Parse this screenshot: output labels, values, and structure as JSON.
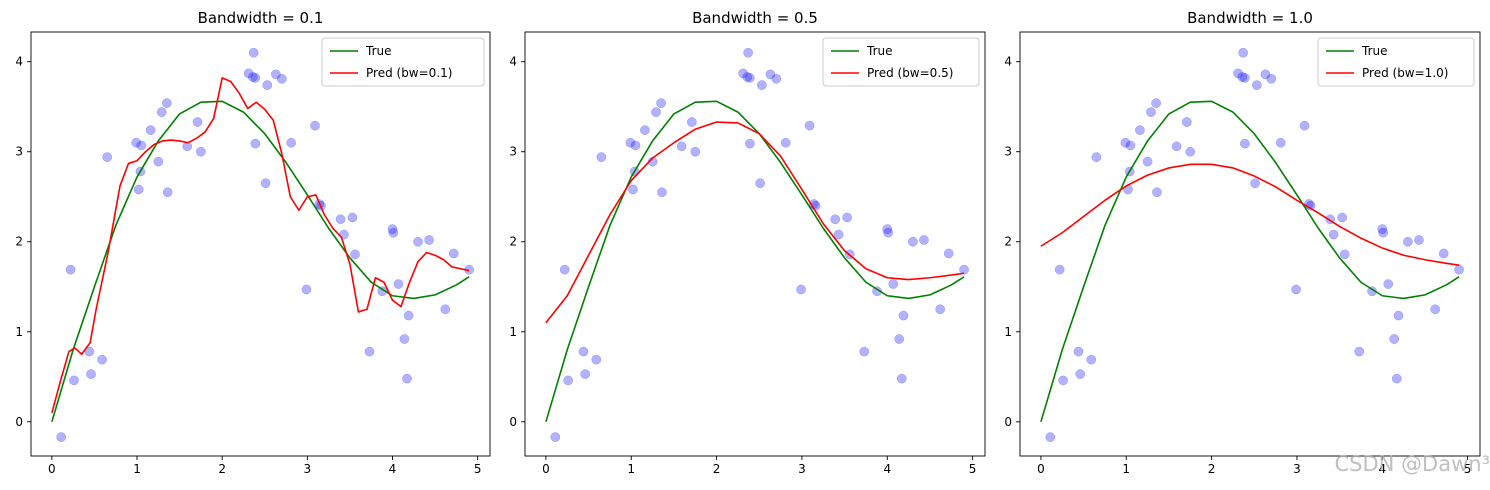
{
  "chart_data": [
    {
      "type": "line",
      "title": "Bandwidth = 0.1",
      "xlabel": "",
      "ylabel": "",
      "xlim": [
        -0.245,
        5.145
      ],
      "ylim": [
        -0.38,
        4.33
      ],
      "x_ticks": [
        0,
        1,
        2,
        3,
        4,
        5
      ],
      "y_ticks": [
        0,
        1,
        2,
        3,
        4
      ],
      "legend_position": "top-right",
      "series": [
        {
          "name": "True",
          "color": "#008000",
          "kind": "line",
          "source": "true_curve"
        },
        {
          "name": "Pred (bw=0.1)",
          "color": "#ff0000",
          "kind": "line",
          "x": [
            0.0,
            0.1,
            0.2,
            0.27,
            0.35,
            0.45,
            0.52,
            0.66,
            0.8,
            0.9,
            1.0,
            1.1,
            1.2,
            1.3,
            1.4,
            1.5,
            1.6,
            1.7,
            1.8,
            1.9,
            2.0,
            2.1,
            2.2,
            2.3,
            2.4,
            2.5,
            2.6,
            2.7,
            2.8,
            2.9,
            3.0,
            3.1,
            3.2,
            3.3,
            3.4,
            3.5,
            3.6,
            3.7,
            3.8,
            3.9,
            4.0,
            4.1,
            4.2,
            4.3,
            4.4,
            4.5,
            4.6,
            4.7,
            4.8,
            4.9
          ],
          "y": [
            0.1,
            0.45,
            0.78,
            0.82,
            0.75,
            0.88,
            1.25,
            1.88,
            2.62,
            2.87,
            2.9,
            3.0,
            3.08,
            3.12,
            3.13,
            3.12,
            3.1,
            3.15,
            3.22,
            3.37,
            3.82,
            3.78,
            3.65,
            3.48,
            3.55,
            3.47,
            3.35,
            2.98,
            2.5,
            2.35,
            2.5,
            2.52,
            2.3,
            2.15,
            2.05,
            1.75,
            1.22,
            1.25,
            1.6,
            1.55,
            1.35,
            1.28,
            1.55,
            1.78,
            1.88,
            1.85,
            1.8,
            1.72,
            1.7,
            1.68
          ]
        }
      ],
      "scatter": {
        "color": "#0000ff",
        "alpha": 0.3,
        "source": "points"
      }
    },
    {
      "type": "line",
      "title": "Bandwidth = 0.5",
      "xlabel": "",
      "ylabel": "",
      "xlim": [
        -0.245,
        5.145
      ],
      "ylim": [
        -0.38,
        4.33
      ],
      "x_ticks": [
        0,
        1,
        2,
        3,
        4,
        5
      ],
      "y_ticks": [
        0,
        1,
        2,
        3,
        4
      ],
      "legend_position": "top-right",
      "series": [
        {
          "name": "True",
          "color": "#008000",
          "kind": "line",
          "source": "true_curve"
        },
        {
          "name": "Pred (bw=0.5)",
          "color": "#ff0000",
          "kind": "line",
          "x": [
            0.0,
            0.25,
            0.5,
            0.75,
            1.0,
            1.25,
            1.5,
            1.75,
            2.0,
            2.25,
            2.5,
            2.75,
            3.0,
            3.25,
            3.5,
            3.75,
            4.0,
            4.25,
            4.5,
            4.75,
            4.9
          ],
          "y": [
            1.1,
            1.4,
            1.85,
            2.3,
            2.68,
            2.93,
            3.1,
            3.25,
            3.33,
            3.32,
            3.2,
            2.95,
            2.58,
            2.2,
            1.9,
            1.7,
            1.6,
            1.58,
            1.6,
            1.63,
            1.65
          ]
        }
      ],
      "scatter": {
        "color": "#0000ff",
        "alpha": 0.3,
        "source": "points"
      }
    },
    {
      "type": "line",
      "title": "Bandwidth = 1.0",
      "xlabel": "",
      "ylabel": "",
      "xlim": [
        -0.245,
        5.145
      ],
      "ylim": [
        -0.38,
        4.33
      ],
      "x_ticks": [
        0,
        1,
        2,
        3,
        4,
        5
      ],
      "y_ticks": [
        0,
        1,
        2,
        3,
        4
      ],
      "legend_position": "top-right",
      "series": [
        {
          "name": "True",
          "color": "#008000",
          "kind": "line",
          "source": "true_curve"
        },
        {
          "name": "Pred (bw=1.0)",
          "color": "#ff0000",
          "kind": "line",
          "x": [
            0.0,
            0.25,
            0.5,
            0.75,
            1.0,
            1.25,
            1.5,
            1.75,
            2.0,
            2.25,
            2.5,
            2.75,
            3.0,
            3.25,
            3.5,
            3.75,
            4.0,
            4.25,
            4.5,
            4.75,
            4.9
          ],
          "y": [
            1.95,
            2.1,
            2.28,
            2.46,
            2.62,
            2.74,
            2.82,
            2.86,
            2.86,
            2.82,
            2.73,
            2.61,
            2.46,
            2.32,
            2.17,
            2.04,
            1.93,
            1.85,
            1.8,
            1.76,
            1.74
          ]
        }
      ],
      "scatter": {
        "color": "#0000ff",
        "alpha": 0.3,
        "source": "points"
      }
    }
  ],
  "shared": {
    "true_curve": {
      "x": [
        0.0,
        0.25,
        0.5,
        0.75,
        1.0,
        1.25,
        1.5,
        1.75,
        2.0,
        2.25,
        2.5,
        2.75,
        3.0,
        3.25,
        3.5,
        3.75,
        4.0,
        4.25,
        4.5,
        4.75,
        4.9
      ],
      "y": [
        0.0,
        0.8,
        1.5,
        2.18,
        2.72,
        3.12,
        3.42,
        3.55,
        3.56,
        3.44,
        3.2,
        2.88,
        2.52,
        2.15,
        1.82,
        1.55,
        1.4,
        1.37,
        1.41,
        1.52,
        1.61
      ]
    },
    "points": {
      "x": [
        0.11,
        0.22,
        0.26,
        0.44,
        0.46,
        0.59,
        0.65,
        0.99,
        1.02,
        1.04,
        1.05,
        1.16,
        1.25,
        1.29,
        1.35,
        1.36,
        1.59,
        1.71,
        1.75,
        2.31,
        2.36,
        2.37,
        2.39,
        2.39,
        2.51,
        2.53,
        2.63,
        2.7,
        2.81,
        2.99,
        3.09,
        3.14,
        3.16,
        3.39,
        3.43,
        3.53,
        3.56,
        3.73,
        3.88,
        4.0,
        4.01,
        4.07,
        4.14,
        4.17,
        4.19,
        4.3,
        4.43,
        4.62,
        4.72,
        4.9
      ],
      "y": [
        -0.17,
        1.69,
        0.46,
        0.78,
        0.53,
        0.69,
        2.94,
        3.1,
        2.58,
        2.78,
        3.07,
        3.24,
        2.89,
        3.44,
        3.54,
        2.55,
        3.06,
        3.33,
        3.0,
        3.87,
        3.83,
        4.1,
        3.82,
        3.09,
        2.65,
        3.74,
        3.86,
        3.81,
        3.1,
        1.47,
        3.29,
        2.42,
        2.4,
        2.25,
        2.08,
        2.27,
        1.86,
        0.78,
        1.45,
        2.14,
        2.1,
        1.53,
        0.92,
        0.48,
        1.18,
        2.0,
        2.02,
        1.25,
        1.87,
        1.69
      ]
    }
  },
  "watermark": "CSDN @Dawn³"
}
